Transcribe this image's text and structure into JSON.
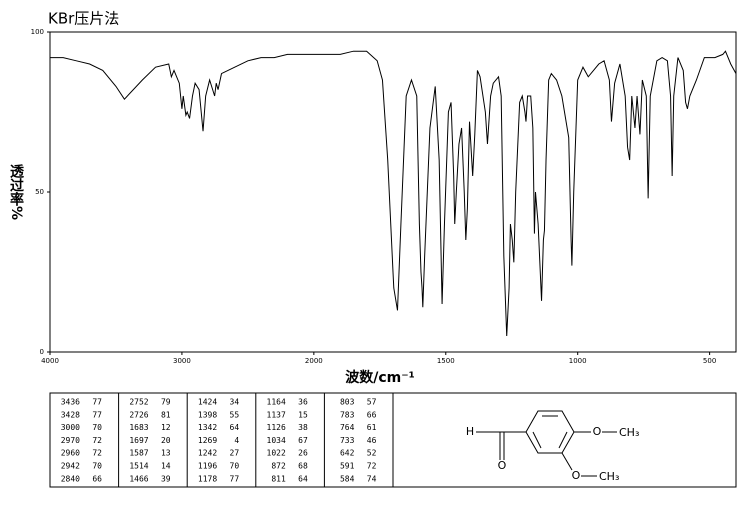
{
  "chart_data": {
    "type": "line",
    "title": "KBr压片法",
    "x_label": "波数/cm⁻¹",
    "y_label": "透过率%",
    "xlim": [
      4000,
      400
    ],
    "x_scale_break": 2000,
    "xticks": [
      4000,
      3000,
      2000,
      1500,
      1000,
      500
    ],
    "ylim": [
      0,
      100
    ],
    "yticks": [
      0,
      50,
      100
    ],
    "color": "#000000",
    "x": [
      4000,
      3900,
      3800,
      3700,
      3600,
      3500,
      3436,
      3300,
      3200,
      3100,
      3080,
      3060,
      3020,
      3000,
      2990,
      2970,
      2960,
      2942,
      2920,
      2900,
      2870,
      2840,
      2820,
      2790,
      2752,
      2740,
      2726,
      2700,
      2600,
      2500,
      2400,
      2300,
      2200,
      2000,
      1900,
      1850,
      1800,
      1760,
      1740,
      1720,
      1700,
      1697,
      1683,
      1670,
      1650,
      1630,
      1610,
      1600,
      1594,
      1590,
      1587,
      1580,
      1560,
      1540,
      1525,
      1514,
      1505,
      1490,
      1480,
      1470,
      1466,
      1460,
      1450,
      1440,
      1430,
      1424,
      1418,
      1410,
      1398,
      1390,
      1380,
      1370,
      1350,
      1342,
      1330,
      1320,
      1300,
      1290,
      1280,
      1269,
      1260,
      1255,
      1248,
      1242,
      1235,
      1220,
      1210,
      1200,
      1196,
      1190,
      1178,
      1170,
      1164,
      1160,
      1150,
      1137,
      1130,
      1126,
      1120,
      1110,
      1100,
      1080,
      1060,
      1040,
      1034,
      1025,
      1022,
      1015,
      1000,
      980,
      960,
      940,
      920,
      900,
      880,
      872,
      860,
      840,
      820,
      811,
      803,
      795,
      783,
      775,
      764,
      755,
      740,
      733,
      725,
      700,
      680,
      660,
      648,
      642,
      636,
      620,
      600,
      591,
      584,
      575,
      550,
      520,
      480,
      450,
      440,
      420,
      400
    ],
    "values": [
      92,
      92,
      91,
      90,
      88,
      83,
      79,
      85,
      89,
      90,
      86,
      88,
      84,
      76,
      80,
      74,
      75,
      73,
      80,
      84,
      82,
      69,
      80,
      85,
      80,
      84,
      82,
      87,
      89,
      91,
      92,
      92,
      93,
      93,
      93,
      94,
      94,
      91,
      85,
      60,
      25,
      20,
      13,
      40,
      80,
      85,
      80,
      40,
      25,
      20,
      14,
      30,
      70,
      83,
      60,
      15,
      40,
      75,
      78,
      55,
      40,
      50,
      65,
      70,
      50,
      35,
      45,
      72,
      55,
      68,
      88,
      86,
      75,
      65,
      80,
      84,
      86,
      80,
      30,
      5,
      20,
      40,
      35,
      28,
      50,
      78,
      80,
      75,
      72,
      80,
      80,
      70,
      37,
      50,
      40,
      16,
      35,
      38,
      60,
      85,
      87,
      85,
      80,
      70,
      67,
      35,
      27,
      50,
      85,
      89,
      86,
      88,
      90,
      91,
      85,
      72,
      84,
      90,
      80,
      64,
      60,
      80,
      70,
      80,
      68,
      85,
      80,
      48,
      80,
      91,
      92,
      91,
      80,
      55,
      80,
      92,
      88,
      78,
      76,
      80,
      85,
      92,
      92,
      93,
      94,
      90,
      87
    ]
  },
  "peak_table": {
    "columns": [
      [
        [
          3436,
          77
        ],
        [
          3428,
          77
        ],
        [
          3000,
          70
        ],
        [
          2970,
          72
        ],
        [
          2960,
          72
        ],
        [
          2942,
          70
        ],
        [
          2840,
          66
        ]
      ],
      [
        [
          2752,
          79
        ],
        [
          2726,
          81
        ],
        [
          1683,
          12
        ],
        [
          1697,
          20
        ],
        [
          1587,
          13
        ],
        [
          1514,
          14
        ],
        [
          1466,
          39
        ]
      ],
      [
        [
          1424,
          34
        ],
        [
          1398,
          55
        ],
        [
          1342,
          64
        ],
        [
          1269,
          4
        ],
        [
          1242,
          27
        ],
        [
          1196,
          70
        ],
        [
          1178,
          77
        ]
      ],
      [
        [
          1164,
          36
        ],
        [
          1137,
          15
        ],
        [
          1126,
          38
        ],
        [
          1034,
          67
        ],
        [
          1022,
          26
        ],
        [
          872,
          68
        ],
        [
          811,
          64
        ]
      ],
      [
        [
          803,
          57
        ],
        [
          783,
          66
        ],
        [
          764,
          61
        ],
        [
          733,
          46
        ],
        [
          642,
          52
        ],
        [
          591,
          72
        ],
        [
          584,
          74
        ]
      ]
    ]
  },
  "structure": {
    "atoms": [
      "H",
      "O",
      "O",
      "CH₃",
      "O",
      "CH₃"
    ]
  }
}
